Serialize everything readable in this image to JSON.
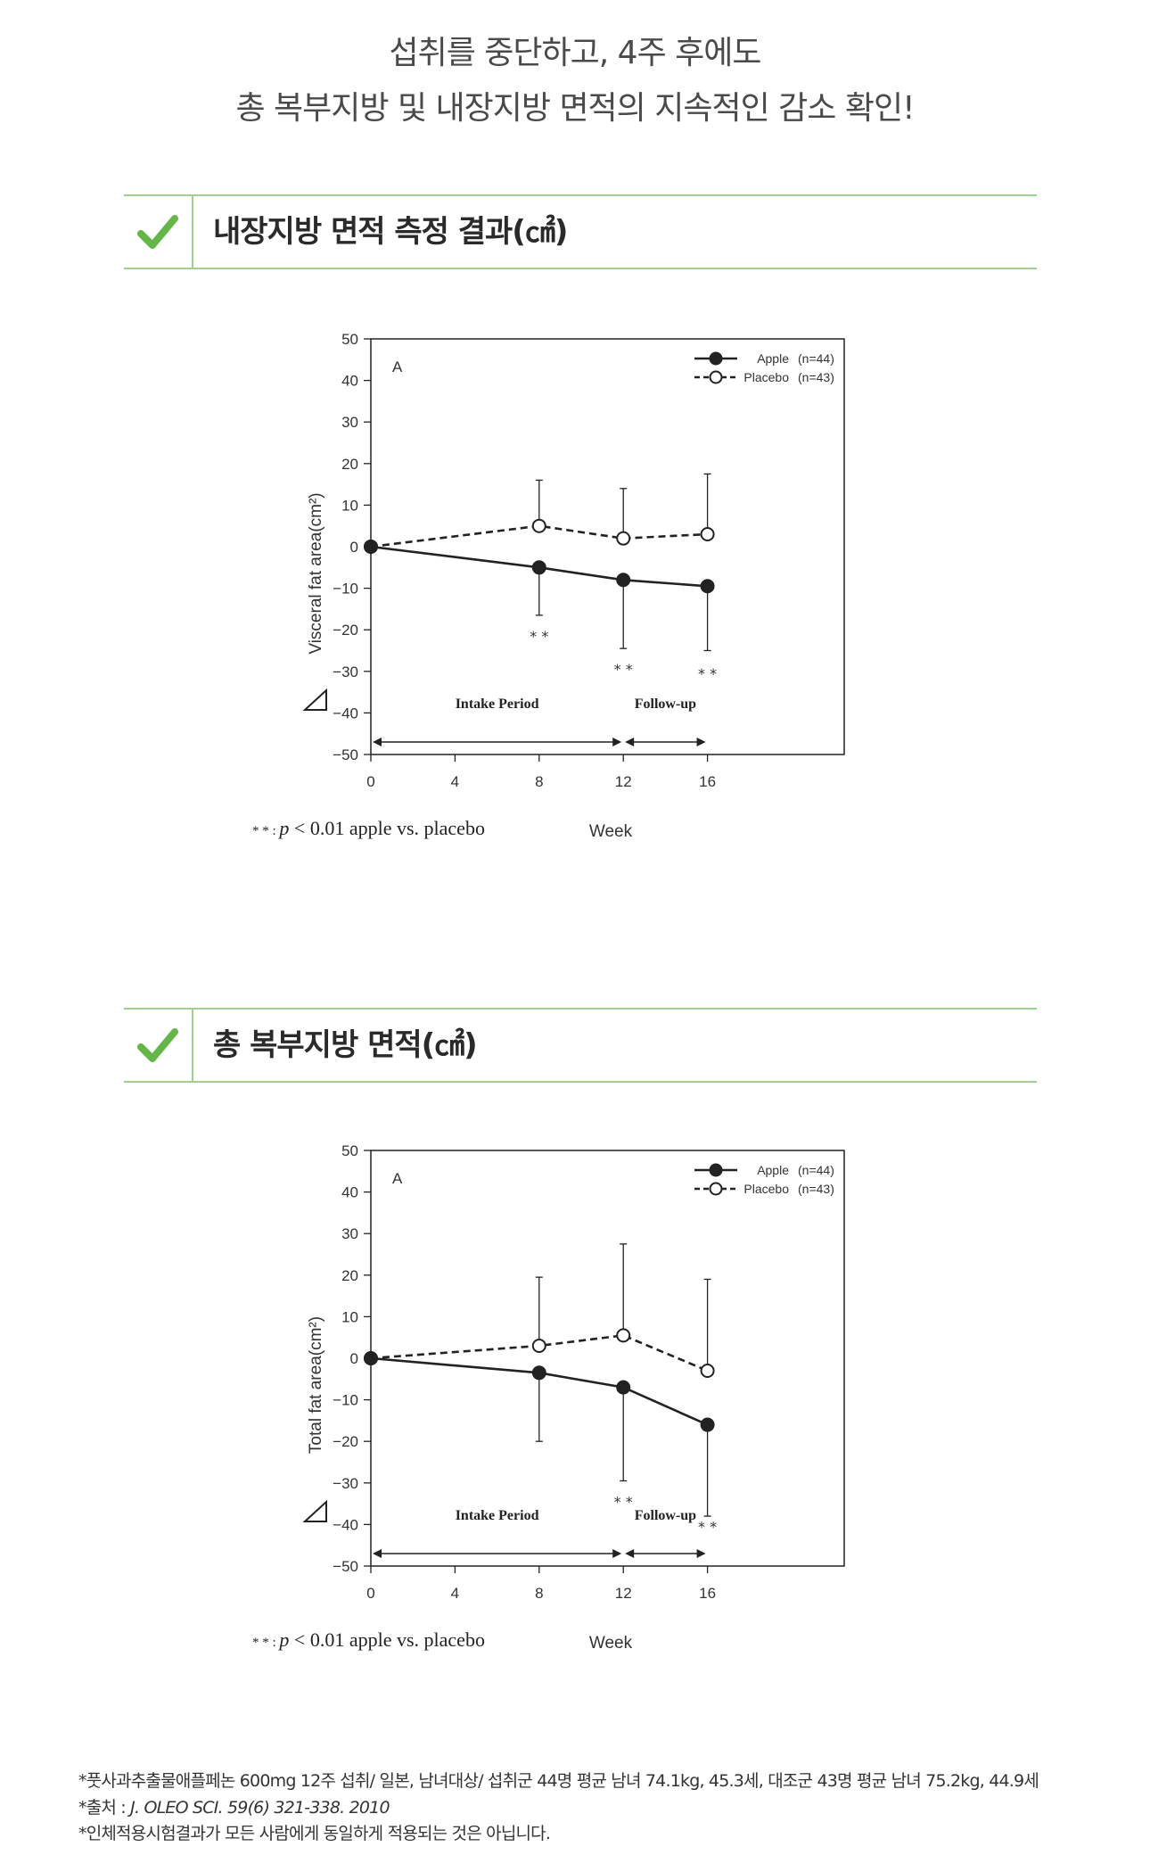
{
  "headline": {
    "line1": "섭취를 중단하고, 4주 후에도",
    "line2": "총 복부지방 및 내장지방 면적의 지속적인 감소 확인!"
  },
  "sections": [
    {
      "title": "내장지방 면적 측정 결과(㎠)",
      "icon": "check-icon"
    },
    {
      "title": "총 복부지방 면적(㎠)",
      "icon": "check-icon"
    }
  ],
  "colors": {
    "accent_green": "#62b746",
    "rule_green": "#9ed18a",
    "series": "#222222"
  },
  "chart_data": [
    {
      "type": "line",
      "panel_label": "A",
      "x": [
        0,
        8,
        12,
        16
      ],
      "xticks": [
        "0",
        "4",
        "8",
        "12",
        "16"
      ],
      "xtick_values": [
        0,
        4,
        8,
        12,
        16
      ],
      "xlabel": "Week",
      "ylabel": "Visceral fat area(cm²)",
      "yticks": [
        "50",
        "40",
        "30",
        "20",
        "10",
        "0",
        "−10",
        "−20",
        "−30",
        "−40",
        "−50"
      ],
      "ylim": [
        -50,
        50
      ],
      "xlim": [
        0,
        22.5
      ],
      "series": [
        {
          "name": "Apple",
          "n_label": "(n=44)",
          "marker": "filled",
          "line": "solid",
          "values": [
            0,
            -5,
            -8,
            -9.5
          ],
          "err": [
            0,
            11.5,
            16.5,
            15.5
          ]
        },
        {
          "name": "Placebo",
          "n_label": "(n=43)",
          "marker": "open",
          "line": "dashed",
          "values": [
            0,
            5,
            2,
            3
          ],
          "err": [
            0,
            11,
            12,
            14.5
          ]
        }
      ],
      "significance": [
        {
          "x": 8,
          "y": -21
        },
        {
          "x": 12,
          "y": -29
        },
        {
          "x": 16,
          "y": -30
        }
      ],
      "periods": [
        {
          "label": "Intake Period",
          "from": 0,
          "to": 12
        },
        {
          "label": "Follow-up",
          "from": 12,
          "to": 16
        }
      ],
      "footnote": {
        "stars": "* * :",
        "p": "p",
        "rest": "< 0.01  apple vs. placebo"
      },
      "legend": "top-right"
    },
    {
      "type": "line",
      "panel_label": "A",
      "x": [
        0,
        8,
        12,
        16
      ],
      "xticks": [
        "0",
        "4",
        "8",
        "12",
        "16"
      ],
      "xtick_values": [
        0,
        4,
        8,
        12,
        16
      ],
      "xlabel": "Week",
      "ylabel": "Total fat area(cm²)",
      "yticks": [
        "50",
        "40",
        "30",
        "20",
        "10",
        "0",
        "−10",
        "−20",
        "−30",
        "−40",
        "−50"
      ],
      "ylim": [
        -50,
        50
      ],
      "xlim": [
        0,
        22.5
      ],
      "series": [
        {
          "name": "Apple",
          "n_label": "(n=44)",
          "marker": "filled",
          "line": "solid",
          "values": [
            0,
            -3.5,
            -7,
            -16
          ],
          "err": [
            0,
            16.5,
            22.5,
            22
          ]
        },
        {
          "name": "Placebo",
          "n_label": "(n=43)",
          "marker": "open",
          "line": "dashed",
          "values": [
            0,
            3,
            5.5,
            -3
          ],
          "err": [
            0,
            16.5,
            22,
            22
          ]
        }
      ],
      "significance": [
        {
          "x": 12,
          "y": -34
        },
        {
          "x": 16,
          "y": -40
        }
      ],
      "periods": [
        {
          "label": "Intake Period",
          "from": 0,
          "to": 12
        },
        {
          "label": "Follow-up",
          "from": 12,
          "to": 16
        }
      ],
      "footnote": {
        "stars": "* * :",
        "p": "p",
        "rest": "< 0.01  apple vs. placebo"
      },
      "legend": "top-right"
    }
  ],
  "notes": {
    "line1": "*풋사과추출물애플페논 600mg 12주 섭취/ 일본, 남녀대상/ 섭취군 44명 평균 남녀 74.1kg, 45.3세, 대조군 43명 평균 남녀 75.2kg, 44.9세",
    "line2_prefix": "*출처 : ",
    "line2_journal": "J. OLEO SCI. 59(6) 321-338. 2010",
    "line3": "*인체적용시험결과가 모든 사람에게 동일하게 적용되는 것은 아닙니다."
  }
}
